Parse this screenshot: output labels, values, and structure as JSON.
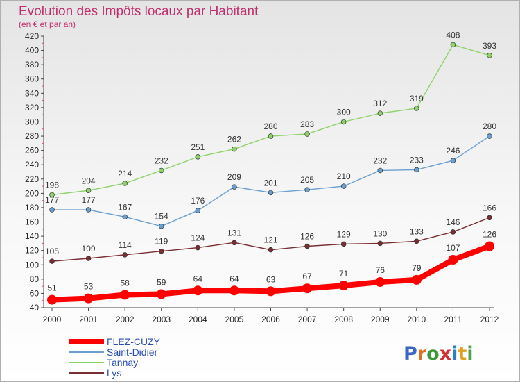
{
  "chart_data": {
    "type": "line",
    "title": "Evolution des Impôts locaux par Habitant",
    "subtitle": "(en € et par an)",
    "x": [
      "2000",
      "2001",
      "2002",
      "2003",
      "2004",
      "2005",
      "2006",
      "2007",
      "2008",
      "2009",
      "2010",
      "2011",
      "2012"
    ],
    "ylim": [
      40,
      420
    ],
    "ytick_step": 20,
    "grid": false,
    "legend_position": "bottom-left",
    "series": [
      {
        "name": "Tannay",
        "color": "#8ed36a",
        "values": [
          198,
          204,
          214,
          232,
          251,
          262,
          280,
          283,
          300,
          312,
          319,
          408,
          393
        ]
      },
      {
        "name": "Saint-Didier",
        "color": "#6a9fd0",
        "values": [
          177,
          177,
          167,
          154,
          176,
          209,
          201,
          205,
          210,
          232,
          233,
          246,
          280
        ]
      },
      {
        "name": "Lys",
        "color": "#7a2e33",
        "values": [
          105,
          109,
          114,
          119,
          124,
          131,
          121,
          126,
          129,
          130,
          133,
          146,
          166
        ]
      },
      {
        "name": "FLEZ-CUZY",
        "color": "#ff0000",
        "values": [
          51,
          53,
          58,
          59,
          64,
          64,
          63,
          67,
          71,
          76,
          79,
          107,
          126
        ]
      }
    ]
  },
  "legend": {
    "items": [
      {
        "name": "FLEZ-CUZY",
        "color": "#ff0000"
      },
      {
        "name": "Saint-Didier",
        "color": "#6a9fd0"
      },
      {
        "name": "Tannay",
        "color": "#8ed36a"
      },
      {
        "name": "Lys",
        "color": "#7a2e33"
      }
    ]
  },
  "logo": {
    "text": "Proxiti"
  }
}
